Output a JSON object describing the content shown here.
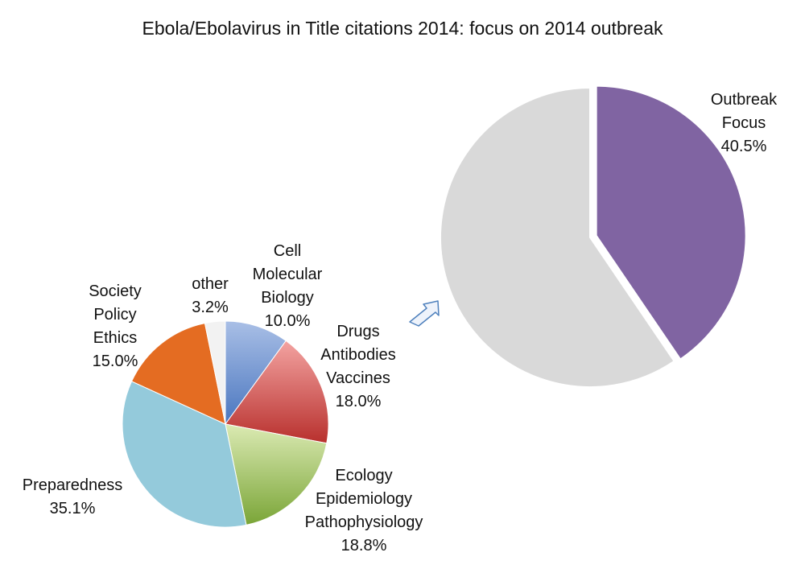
{
  "chart_data": [
    {
      "type": "pie",
      "title": "Ebola/Ebolavirus in Title citations 2014: focus on 2014 outbreak",
      "slices": [
        {
          "label": [
            "Outbreak",
            "Focus"
          ],
          "value": 40.5,
          "display": "40.5%",
          "color": "#8064a2",
          "exploded": true
        },
        {
          "label": [],
          "value": 59.5,
          "display": "",
          "color": "#d9d9d9",
          "exploded": false
        }
      ]
    },
    {
      "type": "pie",
      "slices": [
        {
          "label": [
            "Cell",
            "Molecular",
            "Biology"
          ],
          "value": 10.0,
          "display": "10.0%",
          "color": "#6f93d0"
        },
        {
          "label": [
            "Drugs",
            "Antibodies",
            "Vaccines"
          ],
          "value": 18.0,
          "display": "18.0%",
          "color": "#d9524f"
        },
        {
          "label": [
            "Ecology",
            "Epidemiology",
            "Pathophysiology"
          ],
          "value": 18.8,
          "display": "18.8%",
          "color": "#a7c85a"
        },
        {
          "label": [
            "Preparedness"
          ],
          "value": 35.1,
          "display": "35.1%",
          "color": "#94cadb"
        },
        {
          "label": [
            "Society",
            "Policy",
            "Ethics"
          ],
          "value": 15.0,
          "display": "15.0%",
          "color": "#e46c22"
        },
        {
          "label": [
            "other"
          ],
          "value": 3.2,
          "display": "3.2%",
          "color": "#f2f2f2"
        }
      ]
    }
  ],
  "arrow": {
    "icon": "arrow-left-down-icon",
    "color": "#4f81bd"
  }
}
